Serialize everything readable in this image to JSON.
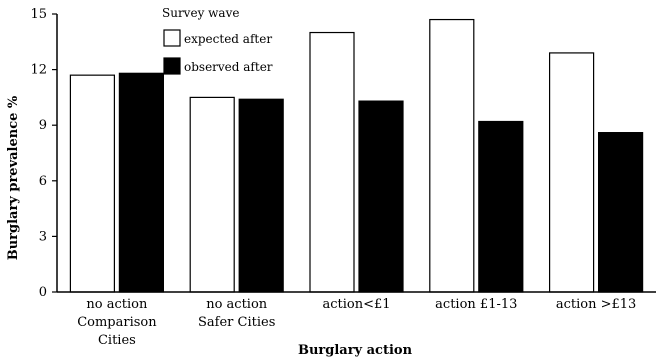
{
  "chart_data": {
    "type": "bar",
    "title": "",
    "xlabel": "Burglary action",
    "ylabel": "Burglary prevalence %",
    "ylim": [
      0,
      15
    ],
    "yticks": [
      "0",
      "3",
      "6",
      "9",
      "12",
      "15"
    ],
    "ytick_values": [
      0,
      3,
      6,
      9,
      12,
      15
    ],
    "categories": [
      [
        "no action",
        "Comparison",
        "Cities"
      ],
      [
        "no action",
        "Safer Cities"
      ],
      [
        "action<£1"
      ],
      [
        "action £1-13"
      ],
      [
        "action >£13"
      ]
    ],
    "legend": {
      "title": "Survey wave",
      "position": "top-left"
    },
    "series": [
      {
        "name": "expected after",
        "color": "#ffffff",
        "values": [
          11.7,
          10.5,
          14.0,
          14.7,
          12.9
        ]
      },
      {
        "name": "observed after",
        "color": "#000000",
        "values": [
          11.8,
          10.4,
          10.3,
          9.2,
          8.6
        ]
      }
    ],
    "grid": false
  }
}
